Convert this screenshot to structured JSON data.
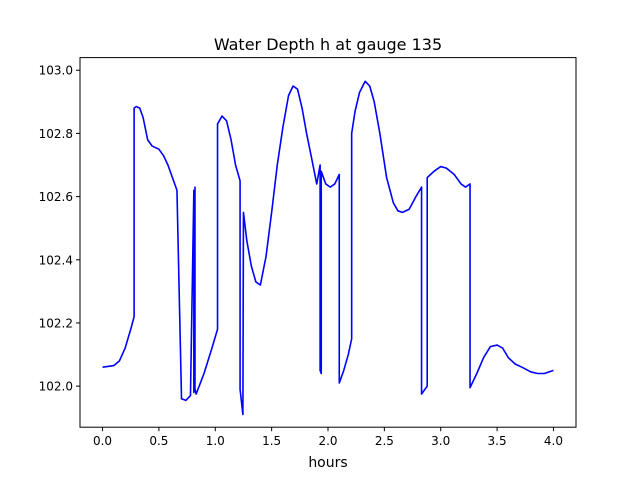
{
  "chart_data": {
    "type": "line",
    "title": "Water Depth h at gauge 135",
    "xlabel": "hours",
    "ylabel": "",
    "xlim": [
      -0.2,
      4.2
    ],
    "ylim": [
      101.87,
      103.04
    ],
    "xticks": [
      0.0,
      0.5,
      1.0,
      1.5,
      2.0,
      2.5,
      3.0,
      3.5,
      4.0
    ],
    "xtick_labels": [
      "0.0",
      "0.5",
      "1.0",
      "1.5",
      "2.0",
      "2.5",
      "3.0",
      "3.5",
      "4.0"
    ],
    "yticks": [
      102.0,
      102.2,
      102.4,
      102.6,
      102.8,
      103.0
    ],
    "ytick_labels": [
      "102.0",
      "102.2",
      "102.4",
      "102.6",
      "102.8",
      "103.0"
    ],
    "grid": false,
    "legend": "none",
    "series": [
      {
        "color": "#0000ff",
        "x": [
          0.0,
          0.1,
          0.15,
          0.2,
          0.25,
          0.28,
          0.28,
          0.3,
          0.33,
          0.36,
          0.4,
          0.44,
          0.5,
          0.54,
          0.58,
          0.62,
          0.66,
          0.7,
          0.7,
          0.74,
          0.78,
          0.81,
          0.81,
          0.82,
          0.82,
          0.83,
          0.9,
          0.97,
          1.02,
          1.02,
          1.06,
          1.1,
          1.14,
          1.18,
          1.22,
          1.22,
          1.245,
          1.25,
          1.28,
          1.32,
          1.36,
          1.4,
          1.45,
          1.5,
          1.55,
          1.6,
          1.65,
          1.69,
          1.73,
          1.77,
          1.81,
          1.85,
          1.9,
          1.93,
          1.93,
          1.94,
          1.94,
          1.98,
          2.02,
          2.06,
          2.1,
          2.1,
          2.14,
          2.18,
          2.21,
          2.21,
          2.24,
          2.28,
          2.33,
          2.37,
          2.41,
          2.46,
          2.52,
          2.58,
          2.62,
          2.66,
          2.72,
          2.78,
          2.83,
          2.83,
          2.88,
          2.88,
          2.94,
          3.0,
          3.05,
          3.12,
          3.18,
          3.22,
          3.26,
          3.26,
          3.32,
          3.38,
          3.44,
          3.5,
          3.55,
          3.6,
          3.66,
          3.72,
          3.8,
          3.86,
          3.92,
          4.0
        ],
        "y": [
          102.06,
          102.065,
          102.08,
          102.12,
          102.18,
          102.22,
          102.88,
          102.885,
          102.88,
          102.85,
          102.78,
          102.76,
          102.75,
          102.73,
          102.7,
          102.66,
          102.62,
          101.97,
          101.96,
          101.955,
          101.97,
          102.62,
          101.98,
          102.63,
          101.99,
          101.975,
          102.04,
          102.12,
          102.18,
          102.83,
          102.855,
          102.84,
          102.78,
          102.7,
          102.65,
          101.99,
          101.91,
          102.55,
          102.46,
          102.38,
          102.33,
          102.32,
          102.41,
          102.55,
          102.7,
          102.82,
          102.92,
          102.95,
          102.94,
          102.88,
          102.8,
          102.73,
          102.64,
          102.7,
          102.05,
          102.04,
          102.68,
          102.64,
          102.63,
          102.64,
          102.67,
          102.01,
          102.05,
          102.1,
          102.15,
          102.8,
          102.87,
          102.93,
          102.965,
          102.95,
          102.9,
          102.8,
          102.66,
          102.58,
          102.555,
          102.55,
          102.56,
          102.6,
          102.63,
          101.975,
          102.0,
          102.66,
          102.68,
          102.695,
          102.69,
          102.67,
          102.64,
          102.63,
          102.64,
          101.995,
          102.04,
          102.09,
          102.125,
          102.13,
          102.12,
          102.09,
          102.07,
          102.06,
          102.045,
          102.04,
          102.04,
          102.05
        ]
      }
    ]
  }
}
